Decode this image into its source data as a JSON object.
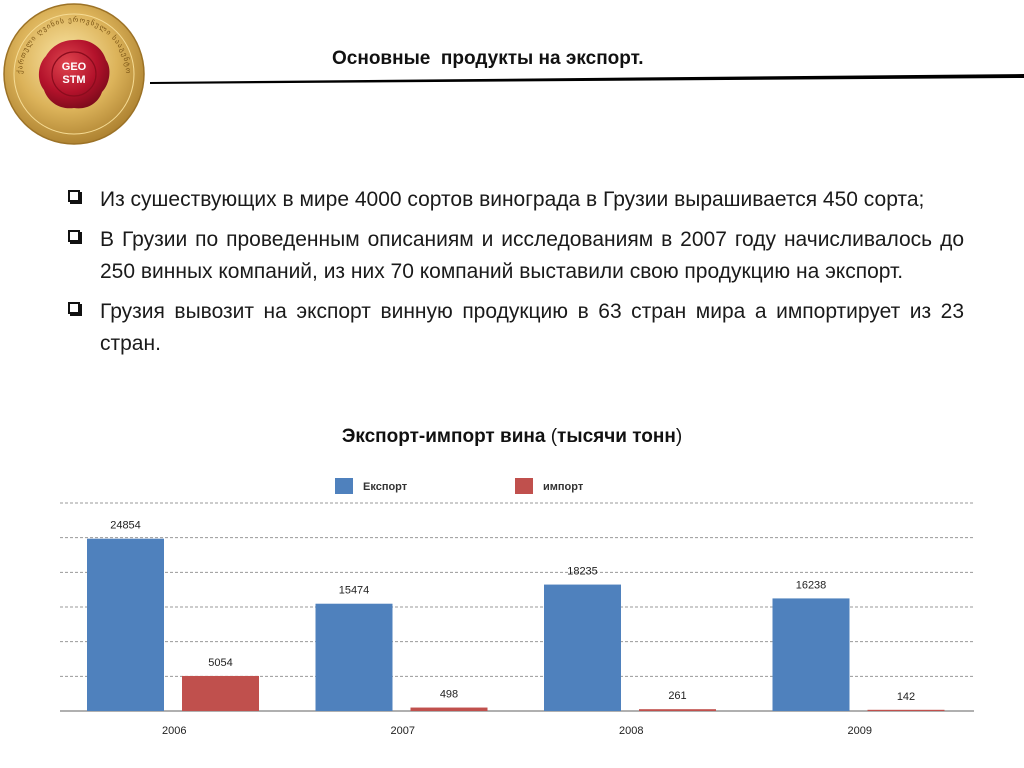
{
  "header": {
    "title": "Основные  продукты на экспорт.",
    "logo_text_top": "GEO",
    "logo_text_bottom": "STM",
    "logo_ring_text": "ქართული ღვინის ეროვნული სააგენტო"
  },
  "bullets": [
    {
      "icon": "checkbox-icon",
      "text": "Из сушествующих в мире 4000 сортов винограда в Грузии вырашивается 450 сорта;"
    },
    {
      "icon": "checkbox-icon",
      "text": "В Грузии по проведенным описаниям и исследованиям в 2007 году начисливалось до 250 винных компаний, из них 70 компаний выставили свою продукцию на  экспорт."
    },
    {
      "icon": "checkbox-icon",
      "text": "Грузия вывозит на экспорт винную продукцию в 63 стран мира а импортирует из 23 стран."
    }
  ],
  "chart_heading": {
    "main": "Экспорт-импорт вина ",
    "paren_open": "(",
    "bold": "тысячи тонн",
    "paren_close": ")"
  },
  "chart_data": {
    "type": "bar",
    "categories": [
      "2006",
      "2007",
      "2008",
      "2009"
    ],
    "series": [
      {
        "name": "Експорт",
        "values": [
          24854,
          15474,
          18235,
          16238
        ],
        "color": "#4f81bd"
      },
      {
        "name": "импорт",
        "values": [
          5054,
          498,
          261,
          142
        ],
        "color": "#c0504d"
      }
    ],
    "ylim": [
      0,
      30000
    ],
    "grid": true,
    "legend": "top-center",
    "data_labels": true
  },
  "colors": {
    "rule": "#000000",
    "grid": "#9a9a9a",
    "logo_gold": "#d4a94a",
    "logo_red": "#b3122b"
  }
}
